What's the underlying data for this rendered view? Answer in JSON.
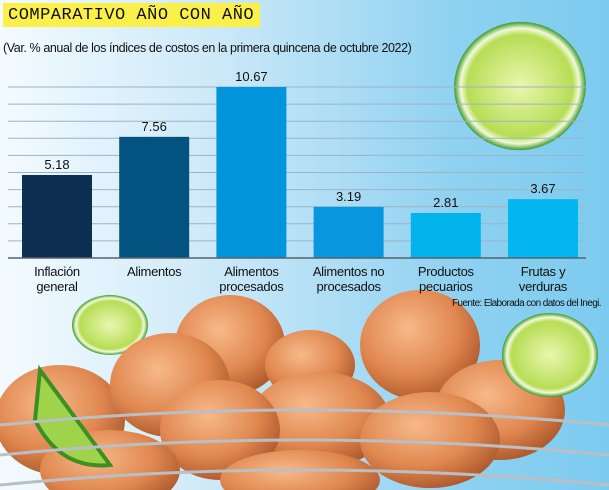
{
  "chart_data": {
    "type": "bar",
    "title": "COMPARATIVO AÑO CON AÑO",
    "subtitle": "(Var. % anual de los índices de costos en la primera quincena de octubre 2022)",
    "categories": [
      [
        "Inflación",
        "general"
      ],
      [
        "Alimentos"
      ],
      [
        "Alimentos",
        "procesados"
      ],
      [
        "Alimentos no",
        "procesados"
      ],
      [
        "Productos",
        "pecuarios"
      ],
      [
        "Frutas y",
        "verduras"
      ]
    ],
    "values": [
      5.18,
      7.56,
      10.67,
      3.19,
      2.81,
      3.67
    ],
    "labels": [
      "5.18",
      "7.56",
      "10.67",
      "3.19",
      "2.81",
      "3.67"
    ],
    "colors": [
      "#0c2f52",
      "#03527f",
      "#0395dc",
      "#0897de",
      "#02b3ec",
      "#03b6ef"
    ],
    "xlabel": "",
    "ylabel": "",
    "ylim": [
      0,
      10.67
    ],
    "grid": true,
    "legend": "none"
  },
  "source": "Fuente: Elaborada con datos del Inegi."
}
